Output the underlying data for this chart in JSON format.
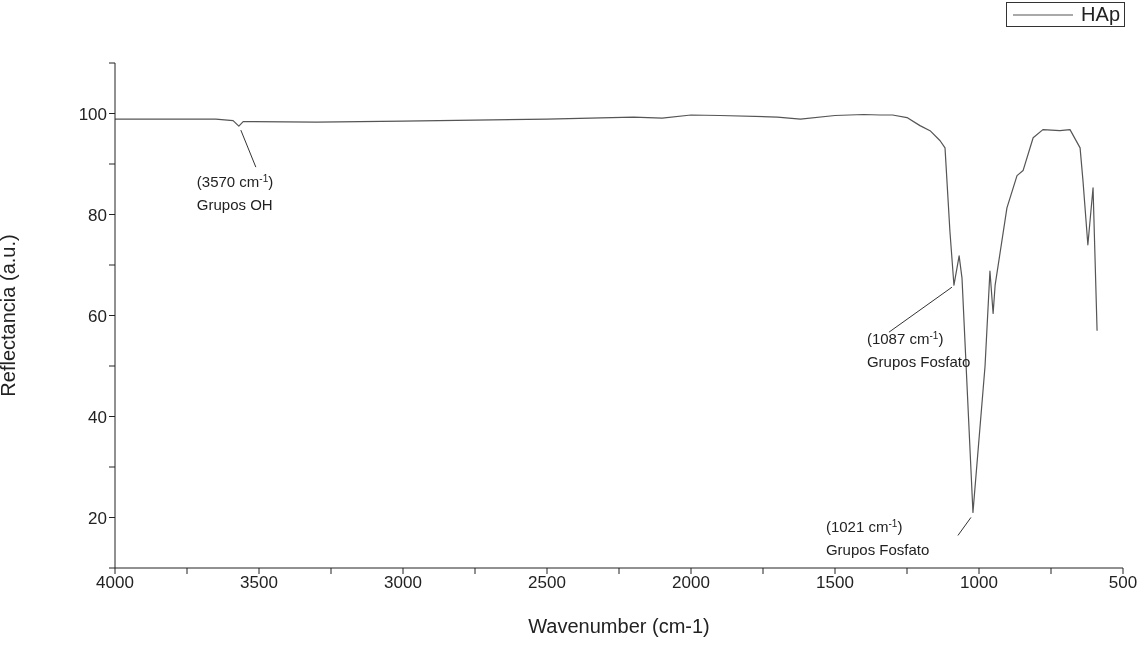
{
  "chart_data": {
    "type": "line",
    "xlabel": "Wavenumber (cm-1)",
    "ylabel": "Reflectancia (a.u.)",
    "xlim": [
      4000,
      500
    ],
    "xticks": [
      4000,
      {
        "value": 3750,
        "label": null
      },
      3500,
      {
        "value": 3250,
        "label": null
      },
      3000,
      {
        "value": 2750,
        "label": null
      },
      2500,
      {
        "value": 2250,
        "label": null
      },
      2000,
      {
        "value": 1750,
        "label": null
      },
      1500,
      {
        "value": 1250,
        "label": null
      },
      1000,
      {
        "value": 750,
        "label": null
      },
      500
    ],
    "ylim": [
      10,
      110
    ],
    "yticks": [
      {
        "value": 10,
        "label": null
      },
      20,
      {
        "value": 30,
        "label": null
      },
      40,
      {
        "value": 50,
        "label": null
      },
      60,
      {
        "value": 70,
        "label": null
      },
      80,
      {
        "value": 90,
        "label": null
      },
      100,
      {
        "value": 110,
        "label": null
      }
    ],
    "grid": false,
    "legend": "top right",
    "marker": "none",
    "line_style": "solid",
    "series": [
      {
        "name": "HAp",
        "color": "#555555",
        "x": [
          4000,
          3650,
          3590,
          3570,
          3555,
          3300,
          3000,
          2500,
          2200,
          2100,
          2000,
          1900,
          1700,
          1620,
          1500,
          1400,
          1344,
          1300,
          1250,
          1205,
          1170,
          1135,
          1118,
          1101,
          1087,
          1069,
          1059,
          1021,
          979,
          962,
          951,
          944,
          903,
          868,
          847,
          812,
          778,
          719,
          684,
          649,
          639,
          622,
          604,
          590
        ],
        "values": [
          98.9,
          98.9,
          98.6,
          97.5,
          98.4,
          98.3,
          98.5,
          98.9,
          99.3,
          99.1,
          99.7,
          99.6,
          99.3,
          98.9,
          99.6,
          99.8,
          99.7,
          99.7,
          99.2,
          97.6,
          96.6,
          94.6,
          93.2,
          76.7,
          66,
          71.8,
          67.4,
          21,
          50,
          68.8,
          60.4,
          66,
          81.3,
          87.7,
          88.7,
          95.2,
          96.8,
          96.6,
          96.8,
          93.2,
          86.7,
          74,
          85.3,
          57
        ]
      }
    ],
    "annotations": [
      {
        "text": "(3570 cm$^{-1}$)\nGrupos OH",
        "x": 3570,
        "y": 97.5
      },
      {
        "text": "(1087 cm$^{-1}$)\nGrupos Fosfato",
        "x": 1087,
        "y": 66
      },
      {
        "text": "(1021 cm$^{-1}$)\nGrupos Fosfato",
        "x": 1021,
        "y": 21
      }
    ]
  }
}
